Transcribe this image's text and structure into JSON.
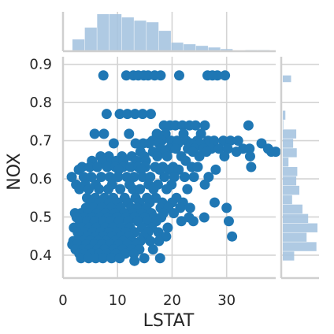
{
  "chart_data": {
    "type": "scatter",
    "kind": "jointplot",
    "xlabel": "LSTAT",
    "ylabel": "NOX",
    "xlim": [
      0,
      39
    ],
    "ylim": [
      0.34,
      0.92
    ],
    "xticks": [
      0,
      10,
      20,
      30
    ],
    "yticks": [
      0.4,
      0.5,
      0.6,
      0.7,
      0.8,
      0.9
    ],
    "xtick_labels": [
      "0",
      "10",
      "20",
      "30"
    ],
    "ytick_labels": [
      "0.4",
      "0.5",
      "0.6",
      "0.7",
      "0.8",
      "0.9"
    ],
    "grid": true,
    "colors": {
      "point": "#1f77b4",
      "hist": "#a6c4e0",
      "grid": "#d4d4d4",
      "spine": "#cfcfcf",
      "text": "#262626"
    },
    "points": [
      [
        7.4,
        0.871
      ],
      [
        11.6,
        0.871
      ],
      [
        12.9,
        0.871
      ],
      [
        13.8,
        0.871
      ],
      [
        14.8,
        0.871
      ],
      [
        15.6,
        0.871
      ],
      [
        16.8,
        0.871
      ],
      [
        17.9,
        0.871
      ],
      [
        21.3,
        0.871
      ],
      [
        26.5,
        0.871
      ],
      [
        27.4,
        0.871
      ],
      [
        28.3,
        0.871
      ],
      [
        29.7,
        0.871
      ],
      [
        8.0,
        0.77
      ],
      [
        10.4,
        0.77
      ],
      [
        11.8,
        0.77
      ],
      [
        13.2,
        0.77
      ],
      [
        14.6,
        0.77
      ],
      [
        16.1,
        0.77
      ],
      [
        18.5,
        0.74
      ],
      [
        19.6,
        0.74
      ],
      [
        20.6,
        0.74
      ],
      [
        21.9,
        0.74
      ],
      [
        23.2,
        0.74
      ],
      [
        24.3,
        0.74
      ],
      [
        26.0,
        0.74
      ],
      [
        34.0,
        0.74
      ],
      [
        17.2,
        0.718
      ],
      [
        18.8,
        0.718
      ],
      [
        22.1,
        0.718
      ],
      [
        25.3,
        0.718
      ],
      [
        5.8,
        0.718
      ],
      [
        7.5,
        0.718
      ],
      [
        12.1,
        0.718
      ],
      [
        16.4,
        0.7
      ],
      [
        18.1,
        0.7
      ],
      [
        19.8,
        0.7
      ],
      [
        20.9,
        0.7
      ],
      [
        22.6,
        0.7
      ],
      [
        24.6,
        0.7
      ],
      [
        26.6,
        0.7
      ],
      [
        27.7,
        0.7
      ],
      [
        29.4,
        0.7
      ],
      [
        30.7,
        0.7
      ],
      [
        32.1,
        0.7
      ],
      [
        36.4,
        0.693
      ],
      [
        9.3,
        0.693
      ],
      [
        14.7,
        0.693
      ],
      [
        13.3,
        0.693
      ],
      [
        15.8,
        0.693
      ],
      [
        17.6,
        0.693
      ],
      [
        21.1,
        0.693
      ],
      [
        23.5,
        0.693
      ],
      [
        25.1,
        0.693
      ],
      [
        18.0,
        0.679
      ],
      [
        19.5,
        0.679
      ],
      [
        20.7,
        0.679
      ],
      [
        22.9,
        0.679
      ],
      [
        24.1,
        0.679
      ],
      [
        25.8,
        0.679
      ],
      [
        27.2,
        0.679
      ],
      [
        28.6,
        0.679
      ],
      [
        30.2,
        0.679
      ],
      [
        37.6,
        0.679
      ],
      [
        33.0,
        0.679
      ],
      [
        34.2,
        0.679
      ],
      [
        14.2,
        0.671
      ],
      [
        16.5,
        0.671
      ],
      [
        18.7,
        0.671
      ],
      [
        23.8,
        0.671
      ],
      [
        26.3,
        0.671
      ],
      [
        31.8,
        0.671
      ],
      [
        38.2,
        0.671
      ],
      [
        39.0,
        0.671
      ],
      [
        6.9,
        0.659
      ],
      [
        8.4,
        0.659
      ],
      [
        10.8,
        0.659
      ],
      [
        12.6,
        0.659
      ],
      [
        14.9,
        0.659
      ],
      [
        17.3,
        0.659
      ],
      [
        19.1,
        0.659
      ],
      [
        21.7,
        0.659
      ],
      [
        25.0,
        0.659
      ],
      [
        29.6,
        0.659
      ],
      [
        34.3,
        0.659
      ],
      [
        13.4,
        0.647
      ],
      [
        15.2,
        0.647
      ],
      [
        22.5,
        0.647
      ],
      [
        5.3,
        0.647
      ],
      [
        7.2,
        0.647
      ],
      [
        8.9,
        0.647
      ],
      [
        9.8,
        0.647
      ],
      [
        11.1,
        0.647
      ],
      [
        3.5,
        0.631
      ],
      [
        4.9,
        0.631
      ],
      [
        6.3,
        0.631
      ],
      [
        8.1,
        0.631
      ],
      [
        9.6,
        0.631
      ],
      [
        11.0,
        0.631
      ],
      [
        12.4,
        0.631
      ],
      [
        13.8,
        0.631
      ],
      [
        15.1,
        0.631
      ],
      [
        16.9,
        0.631
      ],
      [
        18.3,
        0.631
      ],
      [
        20.2,
        0.631
      ],
      [
        23.6,
        0.631
      ],
      [
        24.7,
        0.631
      ],
      [
        34.5,
        0.631
      ],
      [
        2.9,
        0.624
      ],
      [
        10.2,
        0.624
      ],
      [
        14.3,
        0.624
      ],
      [
        17.7,
        0.624
      ],
      [
        19.5,
        0.624
      ],
      [
        21.2,
        0.624
      ],
      [
        28.0,
        0.624
      ],
      [
        1.6,
        0.605
      ],
      [
        3.8,
        0.605
      ],
      [
        5.2,
        0.605
      ],
      [
        7.0,
        0.605
      ],
      [
        8.6,
        0.605
      ],
      [
        10.1,
        0.605
      ],
      [
        11.7,
        0.605
      ],
      [
        13.0,
        0.605
      ],
      [
        14.6,
        0.605
      ],
      [
        16.0,
        0.605
      ],
      [
        18.6,
        0.605
      ],
      [
        20.4,
        0.605
      ],
      [
        22.3,
        0.605
      ],
      [
        24.0,
        0.605
      ],
      [
        26.7,
        0.605
      ],
      [
        2.4,
        0.585
      ],
      [
        4.1,
        0.585
      ],
      [
        6.0,
        0.585
      ],
      [
        9.0,
        0.585
      ],
      [
        12.2,
        0.585
      ],
      [
        15.7,
        0.585
      ],
      [
        17.4,
        0.585
      ],
      [
        19.9,
        0.585
      ],
      [
        26.0,
        0.585
      ],
      [
        3.0,
        0.573
      ],
      [
        4.7,
        0.573
      ],
      [
        6.6,
        0.573
      ],
      [
        8.3,
        0.573
      ],
      [
        10.5,
        0.573
      ],
      [
        12.8,
        0.573
      ],
      [
        14.1,
        0.573
      ],
      [
        16.6,
        0.573
      ],
      [
        19.0,
        0.573
      ],
      [
        22.8,
        0.573
      ],
      [
        4.4,
        0.55
      ],
      [
        5.9,
        0.55
      ],
      [
        7.6,
        0.55
      ],
      [
        9.2,
        0.55
      ],
      [
        11.3,
        0.55
      ],
      [
        13.3,
        0.55
      ],
      [
        15.4,
        0.55
      ],
      [
        17.0,
        0.55
      ],
      [
        20.8,
        0.55
      ],
      [
        5.1,
        0.538
      ],
      [
        6.7,
        0.538
      ],
      [
        8.5,
        0.538
      ],
      [
        10.0,
        0.538
      ],
      [
        11.9,
        0.538
      ],
      [
        14.0,
        0.538
      ],
      [
        15.9,
        0.538
      ],
      [
        18.2,
        0.538
      ],
      [
        20.0,
        0.538
      ],
      [
        22.0,
        0.538
      ],
      [
        27.8,
        0.538
      ],
      [
        4.2,
        0.524
      ],
      [
        5.6,
        0.524
      ],
      [
        7.1,
        0.524
      ],
      [
        8.8,
        0.524
      ],
      [
        10.6,
        0.524
      ],
      [
        12.5,
        0.524
      ],
      [
        13.6,
        0.524
      ],
      [
        15.3,
        0.524
      ],
      [
        17.9,
        0.524
      ],
      [
        19.3,
        0.524
      ],
      [
        21.5,
        0.524
      ],
      [
        23.3,
        0.524
      ],
      [
        30.0,
        0.524
      ],
      [
        2.2,
        0.51
      ],
      [
        3.3,
        0.51
      ],
      [
        4.6,
        0.51
      ],
      [
        6.2,
        0.51
      ],
      [
        7.8,
        0.51
      ],
      [
        9.4,
        0.51
      ],
      [
        11.2,
        0.51
      ],
      [
        12.9,
        0.51
      ],
      [
        14.4,
        0.51
      ],
      [
        16.2,
        0.51
      ],
      [
        18.4,
        0.51
      ],
      [
        20.3,
        0.51
      ],
      [
        2.5,
        0.499
      ],
      [
        3.9,
        0.499
      ],
      [
        5.4,
        0.499
      ],
      [
        6.8,
        0.499
      ],
      [
        8.2,
        0.499
      ],
      [
        9.9,
        0.499
      ],
      [
        11.6,
        0.499
      ],
      [
        13.1,
        0.499
      ],
      [
        15.0,
        0.499
      ],
      [
        16.7,
        0.499
      ],
      [
        18.0,
        0.499
      ],
      [
        23.1,
        0.499
      ],
      [
        25.9,
        0.499
      ],
      [
        3.1,
        0.489
      ],
      [
        4.4,
        0.489
      ],
      [
        5.8,
        0.489
      ],
      [
        7.3,
        0.489
      ],
      [
        8.7,
        0.489
      ],
      [
        10.3,
        0.489
      ],
      [
        12.0,
        0.489
      ],
      [
        13.7,
        0.489
      ],
      [
        15.5,
        0.489
      ],
      [
        17.1,
        0.489
      ],
      [
        21.7,
        0.489
      ],
      [
        23.9,
        0.489
      ],
      [
        30.4,
        0.489
      ],
      [
        2.0,
        0.472
      ],
      [
        3.4,
        0.472
      ],
      [
        4.8,
        0.472
      ],
      [
        6.1,
        0.472
      ],
      [
        7.7,
        0.472
      ],
      [
        9.1,
        0.472
      ],
      [
        10.7,
        0.472
      ],
      [
        12.3,
        0.472
      ],
      [
        14.5,
        0.472
      ],
      [
        16.3,
        0.472
      ],
      [
        19.2,
        0.472
      ],
      [
        2.7,
        0.46
      ],
      [
        4.0,
        0.46
      ],
      [
        5.5,
        0.46
      ],
      [
        6.9,
        0.46
      ],
      [
        8.4,
        0.46
      ],
      [
        10.0,
        0.46
      ],
      [
        11.5,
        0.46
      ],
      [
        13.2,
        0.46
      ],
      [
        15.6,
        0.46
      ],
      [
        17.5,
        0.46
      ],
      [
        3.2,
        0.449
      ],
      [
        4.5,
        0.449
      ],
      [
        6.0,
        0.449
      ],
      [
        7.4,
        0.449
      ],
      [
        9.0,
        0.449
      ],
      [
        10.6,
        0.449
      ],
      [
        12.1,
        0.449
      ],
      [
        14.8,
        0.449
      ],
      [
        18.9,
        0.449
      ],
      [
        31.0,
        0.449
      ],
      [
        1.9,
        0.437
      ],
      [
        2.9,
        0.437
      ],
      [
        3.7,
        0.437
      ],
      [
        5.0,
        0.437
      ],
      [
        6.4,
        0.437
      ],
      [
        7.9,
        0.437
      ],
      [
        9.5,
        0.437
      ],
      [
        11.0,
        0.437
      ],
      [
        12.7,
        0.437
      ],
      [
        14.2,
        0.437
      ],
      [
        16.0,
        0.437
      ],
      [
        17.6,
        0.437
      ],
      [
        1.7,
        0.428
      ],
      [
        2.6,
        0.428
      ],
      [
        4.3,
        0.428
      ],
      [
        5.7,
        0.428
      ],
      [
        7.1,
        0.428
      ],
      [
        8.6,
        0.428
      ],
      [
        10.2,
        0.428
      ],
      [
        11.8,
        0.428
      ],
      [
        13.5,
        0.428
      ],
      [
        2.3,
        0.415
      ],
      [
        3.6,
        0.415
      ],
      [
        4.9,
        0.415
      ],
      [
        6.3,
        0.415
      ],
      [
        7.6,
        0.415
      ],
      [
        9.3,
        0.415
      ],
      [
        10.9,
        0.415
      ],
      [
        12.6,
        0.415
      ],
      [
        14.0,
        0.415
      ],
      [
        16.5,
        0.415
      ],
      [
        3.0,
        0.404
      ],
      [
        4.1,
        0.404
      ],
      [
        5.3,
        0.404
      ],
      [
        6.6,
        0.404
      ],
      [
        8.0,
        0.404
      ],
      [
        9.7,
        0.404
      ],
      [
        11.4,
        0.404
      ],
      [
        13.0,
        0.404
      ],
      [
        3.3,
        0.392
      ],
      [
        4.7,
        0.392
      ],
      [
        6.0,
        0.392
      ],
      [
        7.3,
        0.392
      ],
      [
        8.9,
        0.392
      ],
      [
        10.4,
        0.392
      ],
      [
        13.1,
        0.385
      ],
      [
        14.9,
        0.392
      ],
      [
        17.8,
        0.392
      ]
    ],
    "x_hist": {
      "bin_edges": [
        1.73,
        3.995,
        6.26,
        8.525,
        10.79,
        13.055,
        15.32,
        17.585,
        19.85,
        22.115,
        24.38,
        26.645,
        28.91,
        31.175,
        33.44,
        35.705,
        37.97
      ],
      "counts": [
        22,
        44,
        69,
        69,
        63,
        57,
        54,
        38,
        16,
        13,
        10,
        7,
        4,
        0,
        2,
        2
      ]
    },
    "y_hist": {
      "bin_edges": [
        0.385,
        0.4096,
        0.4342,
        0.4588,
        0.4834,
        0.508,
        0.5326,
        0.5572,
        0.5818,
        0.6064,
        0.631,
        0.6556,
        0.6802,
        0.7048,
        0.7294,
        0.754,
        0.7786,
        0.8032,
        0.8278,
        0.8524,
        0.871
      ],
      "counts": [
        22,
        65,
        46,
        67,
        49,
        38,
        18,
        32,
        26,
        28,
        11,
        27,
        20,
        26,
        1,
        5,
        0,
        0,
        0,
        16
      ]
    }
  }
}
